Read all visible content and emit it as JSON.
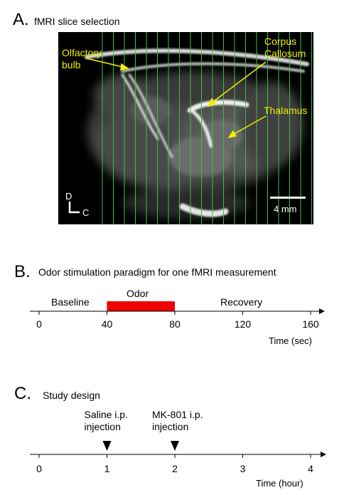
{
  "panel_a": {
    "letter": "A.",
    "title": "fMRI  slice selection",
    "labels": {
      "olfactory_bulb": [
        "Olfactory",
        "bulb"
      ],
      "corpus_callosum": [
        "Corpus",
        "Callosum"
      ],
      "thalamus": "Thalamus"
    },
    "orientation": {
      "dorsal": "D",
      "caudal": "C"
    },
    "scale_bar": "4 mm",
    "colors": {
      "annotation": "#f2ee00",
      "slice_lines": "#3fbf3f"
    }
  },
  "panel_b": {
    "letter": "B.",
    "title": "Odor stimulation paradigm for one fMRI measurement",
    "phases": {
      "baseline": "Baseline",
      "odor": "Odor",
      "recovery": "Recovery"
    },
    "ticks": [
      "0",
      "40",
      "80",
      "120",
      "160"
    ],
    "axis_label": "Time (sec)",
    "odor_color": "#ee0000",
    "odor_start": 40,
    "odor_end": 80,
    "axis_max": 160
  },
  "panel_c": {
    "letter": "C.",
    "title": "Study design",
    "events": [
      {
        "label": [
          "Saline i.p.",
          "injection"
        ],
        "at": 1
      },
      {
        "label": [
          "MK-801 i.p.",
          "injection"
        ],
        "at": 2
      }
    ],
    "ticks": [
      "0",
      "1",
      "2",
      "3",
      "4"
    ],
    "axis_label": "Time (hour)",
    "axis_max": 4
  }
}
